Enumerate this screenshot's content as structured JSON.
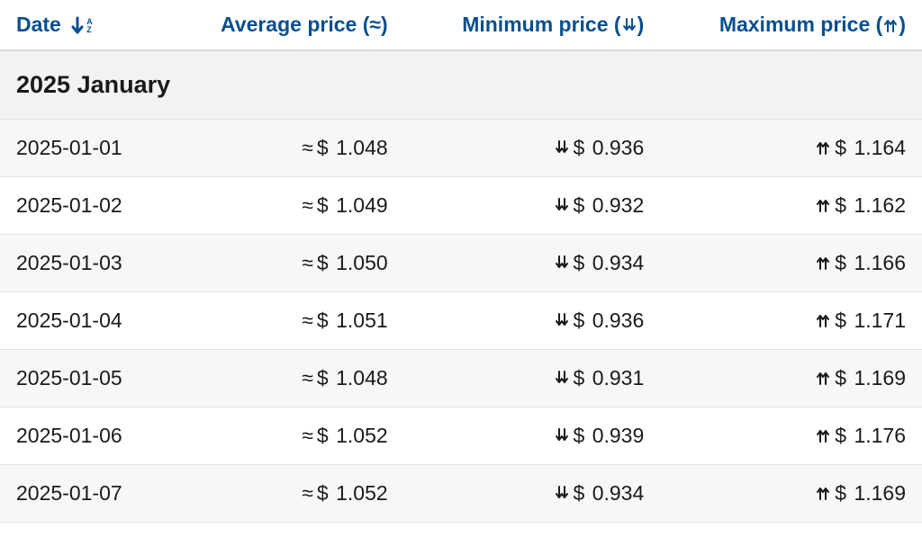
{
  "colors": {
    "header_text": "#0a4f8f",
    "body_text": "#1a1a1a",
    "row_alt_bg": "#f7f7f7",
    "row_bg": "#ffffff",
    "group_bg": "#f2f2f2",
    "border": "#e3e3e3",
    "header_border": "#d9d9d9"
  },
  "currency_symbol": "$",
  "symbols": {
    "approx": "≈",
    "down": "⇊",
    "up": "⇈"
  },
  "columns": {
    "date": {
      "label": "Date",
      "sort_icon": "sort-az"
    },
    "avg": {
      "label": "Average price",
      "paren_icon": "approx"
    },
    "min": {
      "label": "Minimum price",
      "paren_icon": "down"
    },
    "max": {
      "label": "Maximum price",
      "paren_icon": "up"
    }
  },
  "group": {
    "label": "2025 January"
  },
  "rows": [
    {
      "date": "2025-01-01",
      "avg": "1.048",
      "min": "0.936",
      "max": "1.164"
    },
    {
      "date": "2025-01-02",
      "avg": "1.049",
      "min": "0.932",
      "max": "1.162"
    },
    {
      "date": "2025-01-03",
      "avg": "1.050",
      "min": "0.934",
      "max": "1.166"
    },
    {
      "date": "2025-01-04",
      "avg": "1.051",
      "min": "0.936",
      "max": "1.171"
    },
    {
      "date": "2025-01-05",
      "avg": "1.048",
      "min": "0.931",
      "max": "1.169"
    },
    {
      "date": "2025-01-06",
      "avg": "1.052",
      "min": "0.939",
      "max": "1.176"
    },
    {
      "date": "2025-01-07",
      "avg": "1.052",
      "min": "0.934",
      "max": "1.169"
    }
  ]
}
